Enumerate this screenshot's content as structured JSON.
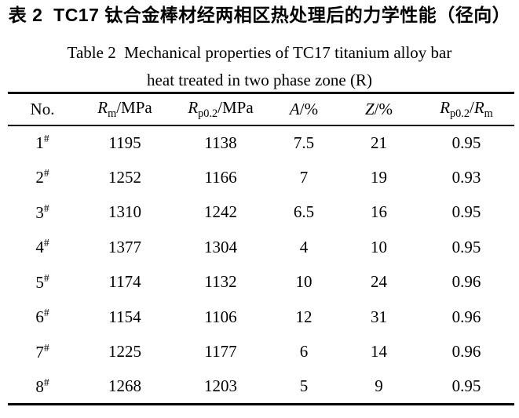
{
  "captions": {
    "title_zh": "表 2  TC17 钛合金棒材经两相区热处理后的力学性能（径向）",
    "title_en_line1": "Table 2  Mechanical properties of TC17 titanium alloy bar",
    "title_en_line2": "heat treated in two phase zone (R)"
  },
  "colors": {
    "text": "#000000",
    "background": "#ffffff",
    "rule": "#000000"
  },
  "table": {
    "headers": [
      {
        "segments": [
          {
            "t": "No."
          }
        ]
      },
      {
        "segments": [
          {
            "t": "R",
            "s": "i"
          },
          {
            "t": "m",
            "s": "sub"
          },
          {
            "t": "/MPa"
          }
        ]
      },
      {
        "segments": [
          {
            "t": "R",
            "s": "i"
          },
          {
            "t": "p0.2",
            "s": "sub"
          },
          {
            "t": "/MPa"
          }
        ]
      },
      {
        "segments": [
          {
            "t": "A",
            "s": "i"
          },
          {
            "t": "/%"
          }
        ]
      },
      {
        "segments": [
          {
            "t": "Z",
            "s": "i"
          },
          {
            "t": "/%"
          }
        ]
      },
      {
        "segments": [
          {
            "t": "R",
            "s": "i"
          },
          {
            "t": "p0.2",
            "s": "sub"
          },
          {
            "t": "/"
          },
          {
            "t": "R",
            "s": "i"
          },
          {
            "t": "m",
            "s": "sub"
          }
        ]
      }
    ],
    "rows": [
      {
        "no": "1",
        "no_sup": "#",
        "rm": "1195",
        "rp02": "1138",
        "a": "7.5",
        "z": "21",
        "ratio": "0.95"
      },
      {
        "no": "2",
        "no_sup": "#",
        "rm": "1252",
        "rp02": "1166",
        "a": "7",
        "z": "19",
        "ratio": "0.93"
      },
      {
        "no": "3",
        "no_sup": "#",
        "rm": "1310",
        "rp02": "1242",
        "a": "6.5",
        "z": "16",
        "ratio": "0.95"
      },
      {
        "no": "4",
        "no_sup": "#",
        "rm": "1377",
        "rp02": "1304",
        "a": "4",
        "z": "10",
        "ratio": "0.95"
      },
      {
        "no": "5",
        "no_sup": "#",
        "rm": "1174",
        "rp02": "1132",
        "a": "10",
        "z": "24",
        "ratio": "0.96"
      },
      {
        "no": "6",
        "no_sup": "#",
        "rm": "1154",
        "rp02": "1106",
        "a": "12",
        "z": "31",
        "ratio": "0.96"
      },
      {
        "no": "7",
        "no_sup": "#",
        "rm": "1225",
        "rp02": "1177",
        "a": "6",
        "z": "14",
        "ratio": "0.96"
      },
      {
        "no": "8",
        "no_sup": "#",
        "rm": "1268",
        "rp02": "1203",
        "a": "5",
        "z": "9",
        "ratio": "0.95"
      }
    ]
  },
  "chart_data": {
    "type": "table",
    "title": "Table 2 Mechanical properties of TC17 titanium alloy bar heat treated in two phase zone (R)",
    "columns": [
      "No.",
      "Rm/MPa",
      "Rp0.2/MPa",
      "A/%",
      "Z/%",
      "Rp0.2/Rm"
    ],
    "rows": [
      [
        "1#",
        1195,
        1138,
        7.5,
        21,
        0.95
      ],
      [
        "2#",
        1252,
        1166,
        7,
        19,
        0.93
      ],
      [
        "3#",
        1310,
        1242,
        6.5,
        16,
        0.95
      ],
      [
        "4#",
        1377,
        1304,
        4,
        10,
        0.95
      ],
      [
        "5#",
        1174,
        1132,
        10,
        24,
        0.96
      ],
      [
        "6#",
        1154,
        1106,
        12,
        31,
        0.96
      ],
      [
        "7#",
        1225,
        1177,
        6,
        14,
        0.96
      ],
      [
        "8#",
        1268,
        1203,
        5,
        9,
        0.95
      ]
    ]
  }
}
